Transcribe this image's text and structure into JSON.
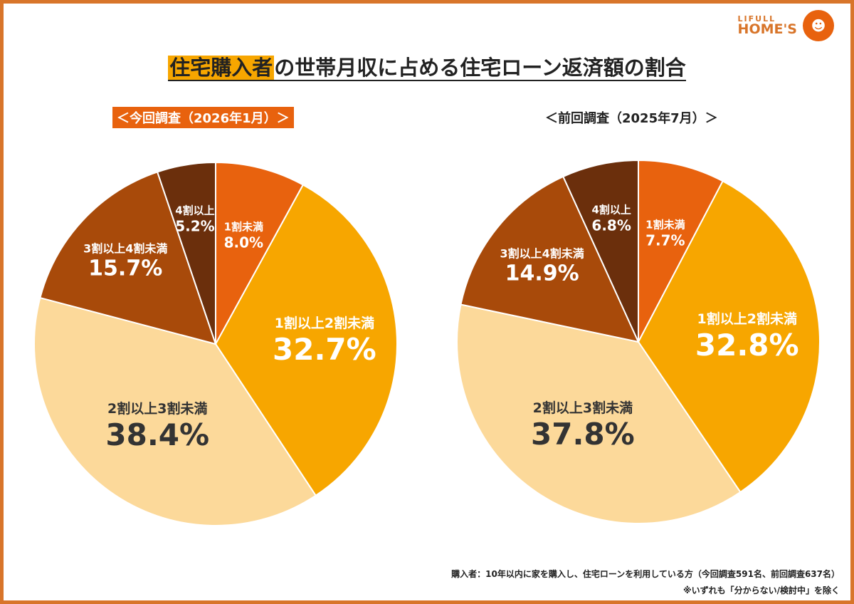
{
  "logo": {
    "line1": "LIFULL",
    "line2": "HOME'S"
  },
  "title": {
    "highlight": "住宅購入者",
    "rest": "の世帯月収に占める住宅ローン返済額の割合"
  },
  "chart_data": [
    {
      "type": "pie",
      "title": "＜今回調査（2026年1月）＞",
      "categories": [
        "1割未満",
        "1割以上2割未満",
        "2割以上3割未満",
        "3割以上4割未満",
        "4割以上"
      ],
      "values": [
        8.0,
        32.7,
        38.4,
        15.7,
        5.2
      ],
      "labels": [
        "8.0%",
        "32.7%",
        "38.4%",
        "15.7%",
        "5.2%"
      ],
      "colors": [
        "#e8620e",
        "#f7a600",
        "#fcd99a",
        "#a84a0a",
        "#6b2f0c"
      ]
    },
    {
      "type": "pie",
      "title": "＜前回調査（2025年7月）＞",
      "categories": [
        "1割未満",
        "1割以上2割未満",
        "2割以上3割未満",
        "3割以上4割未満",
        "4割以上"
      ],
      "values": [
        7.7,
        32.8,
        37.8,
        14.9,
        6.8
      ],
      "labels": [
        "7.7%",
        "32.8%",
        "37.8%",
        "14.9%",
        "6.8%"
      ],
      "colors": [
        "#e8620e",
        "#f7a600",
        "#fcd99a",
        "#a84a0a",
        "#6b2f0c"
      ]
    }
  ],
  "footnotes": [
    "購入者：10年以内に家を購入し、住宅ローンを利用している方（今回調査591名、前回調査637名）",
    "※いずれも「分からない/検討中」を除く"
  ]
}
